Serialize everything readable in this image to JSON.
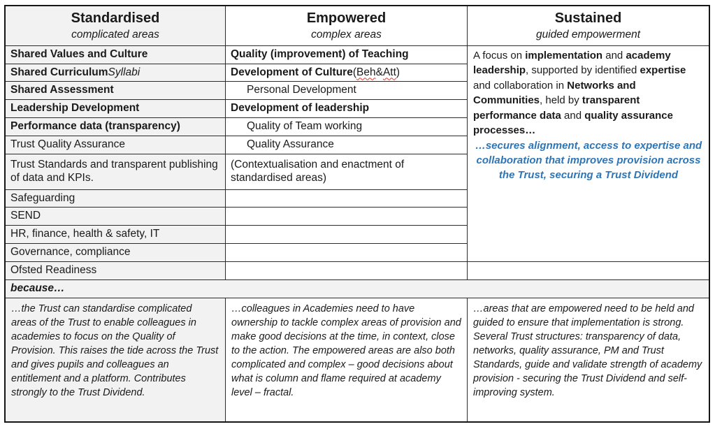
{
  "colors": {
    "accent_blue": "#2e75b6",
    "shade_gray": "#f2f2f2",
    "squiggle_red": "#e0382c"
  },
  "std": {
    "title": "Standardised",
    "subtitle": "complicated areas",
    "r1": "Shared Values and Culture",
    "r2a": "Shared Curriculum ",
    "r2b": "Syllabi",
    "r3": "Shared Assessment",
    "r4": "Leadership Development",
    "r5": "Performance data (transparency)",
    "r6": "Trust Quality Assurance",
    "r7": "Trust Standards and transparent publishing of data and KPIs.",
    "r8": "Safeguarding",
    "r9": "SEND",
    "r10": "HR, finance, health & safety, IT",
    "r11": "Governance, compliance",
    "r12": "Ofsted Readiness"
  },
  "emp": {
    "title": "Empowered",
    "subtitle": "complex areas",
    "r1": "Quality (improvement) of Teaching",
    "r2a": "Development of Culture ",
    "r2b": "(",
    "r2c": "Beh",
    "r2d": " & ",
    "r2e": "Att",
    "r2f": ")",
    "r3": "Personal Development",
    "r4": "Development of leadership",
    "r5": "Quality of Team working",
    "r6": "Quality Assurance",
    "r7": "(Contextualisation and enactment of standardised areas)"
  },
  "sus": {
    "title": "Sustained",
    "subtitle": "guided empowerment",
    "p1a": "A focus on ",
    "p1b": "implementation",
    "p1c": " and ",
    "p1d": "academy leadership",
    "p1e": ", supported by identified ",
    "p1f": "expertise",
    "p1g": " and collaboration in ",
    "p1h": "Networks and Communities",
    "p1i": ", held by ",
    "p1j": "transparent performance data",
    "p1k": " and ",
    "p1l": "quality assurance processes…",
    "p2": "…secures alignment, access to expertise and collaboration that improves provision across the Trust, securing a Trust Dividend"
  },
  "because_label": "because…",
  "footer": {
    "standardised": "…the Trust can standardise complicated areas of the Trust to enable colleagues in academies to focus on the Quality of Provision. This raises the tide across the Trust and gives pupils and colleagues an entitlement and a platform. Contributes strongly to the Trust Dividend.",
    "empowered": "…colleagues in Academies need to have ownership to tackle complex areas of provision and make good decisions at the time, in context, close to the action. The empowered areas are also both complicated and complex – good decisions about what is column and flame required at academy level – fractal.",
    "sustained": "…areas that are empowered need to be held and guided to ensure that implementation is strong. Several Trust structures: transparency of data, networks, quality assurance, PM and Trust Standards, guide and validate strength of academy provision - securing the Trust Dividend and self-improving system."
  }
}
